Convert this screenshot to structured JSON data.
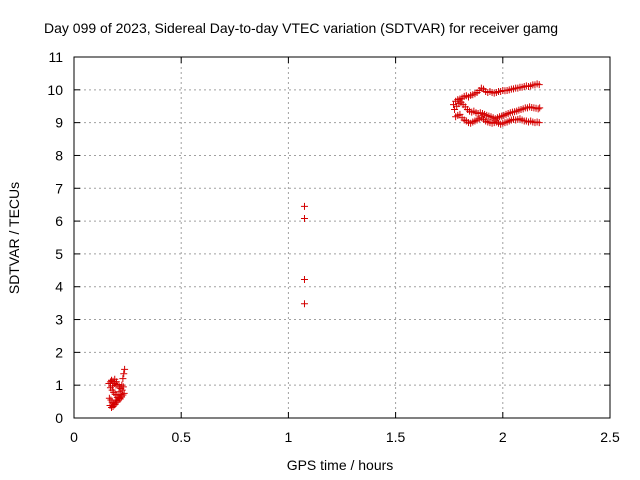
{
  "chart_data": {
    "type": "scatter",
    "title": "Day 099 of 2023, Sidereal Day-to-day VTEC variation (SDTVAR) for receiver gamg",
    "xlabel": "GPS time / hours",
    "ylabel": "SDTVAR / TECUs",
    "xlim": [
      0,
      2.5
    ],
    "ylim": [
      0,
      11
    ],
    "x_ticks": [
      0,
      0.5,
      1,
      1.5,
      2,
      2.5
    ],
    "x_tick_labels": [
      "0",
      "0.5",
      "1",
      "1.5",
      "2",
      "2.5"
    ],
    "y_ticks": [
      0,
      1,
      2,
      3,
      4,
      5,
      6,
      7,
      8,
      9,
      10,
      11
    ],
    "y_tick_labels": [
      "0",
      "1",
      "2",
      "3",
      "4",
      "5",
      "6",
      "7",
      "8",
      "9",
      "10",
      "11"
    ],
    "grid": true,
    "marker": "+",
    "color": "#d40000",
    "series": [
      {
        "points": [
          [
            0.163,
            1.05
          ],
          [
            0.17,
            1.1
          ],
          [
            0.175,
            1.15
          ],
          [
            0.182,
            1.12
          ],
          [
            0.19,
            1.18
          ],
          [
            0.198,
            1.1
          ],
          [
            0.205,
            1.02
          ],
          [
            0.212,
            0.95
          ],
          [
            0.218,
            0.9
          ],
          [
            0.223,
            1.0
          ],
          [
            0.228,
            1.2
          ],
          [
            0.232,
            1.35
          ],
          [
            0.236,
            1.48
          ],
          [
            0.17,
            0.92
          ],
          [
            0.178,
            0.85
          ],
          [
            0.185,
            0.78
          ],
          [
            0.192,
            0.72
          ],
          [
            0.2,
            0.7
          ],
          [
            0.208,
            0.62
          ],
          [
            0.215,
            0.58
          ],
          [
            0.222,
            0.64
          ],
          [
            0.228,
            0.7
          ],
          [
            0.234,
            0.75
          ],
          [
            0.165,
            0.6
          ],
          [
            0.172,
            0.55
          ],
          [
            0.178,
            0.48
          ],
          [
            0.185,
            0.45
          ],
          [
            0.192,
            0.42
          ],
          [
            0.198,
            0.48
          ],
          [
            0.205,
            0.52
          ],
          [
            0.212,
            0.6
          ],
          [
            0.218,
            0.72
          ],
          [
            0.225,
            0.85
          ],
          [
            0.23,
            0.95
          ],
          [
            0.168,
            0.38
          ],
          [
            0.175,
            0.32
          ],
          [
            0.182,
            0.35
          ],
          [
            0.188,
            0.4
          ],
          [
            0.195,
            0.55
          ],
          [
            0.202,
            0.62
          ],
          [
            0.21,
            0.8
          ],
          [
            0.18,
            0.98
          ],
          [
            0.188,
            1.05
          ],
          [
            0.196,
            1.0
          ]
        ]
      },
      {
        "points": [
          [
            1.075,
            6.45
          ],
          [
            1.075,
            6.08
          ],
          [
            1.075,
            4.22
          ],
          [
            1.075,
            3.48
          ]
        ]
      },
      {
        "points": [
          [
            1.77,
            9.55
          ],
          [
            1.78,
            9.65
          ],
          [
            1.79,
            9.7
          ],
          [
            1.8,
            9.72
          ],
          [
            1.81,
            9.75
          ],
          [
            1.82,
            9.8
          ],
          [
            1.83,
            9.82
          ],
          [
            1.84,
            9.78
          ],
          [
            1.85,
            9.83
          ],
          [
            1.86,
            9.85
          ],
          [
            1.87,
            9.88
          ],
          [
            1.88,
            9.92
          ],
          [
            1.89,
            9.98
          ],
          [
            1.9,
            10.05
          ],
          [
            1.91,
            10.02
          ],
          [
            1.92,
            9.95
          ],
          [
            1.93,
            9.92
          ],
          [
            1.94,
            9.95
          ],
          [
            1.95,
            9.92
          ],
          [
            1.96,
            9.9
          ],
          [
            1.97,
            9.92
          ],
          [
            1.98,
            9.95
          ],
          [
            1.99,
            9.95
          ],
          [
            2.0,
            9.98
          ],
          [
            2.01,
            9.97
          ],
          [
            2.02,
            9.98
          ],
          [
            2.03,
            10.0
          ],
          [
            2.04,
            10.02
          ],
          [
            2.05,
            10.03
          ],
          [
            2.06,
            10.05
          ],
          [
            2.07,
            10.05
          ],
          [
            2.08,
            10.08
          ],
          [
            2.09,
            10.08
          ],
          [
            2.1,
            10.1
          ],
          [
            2.11,
            10.12
          ],
          [
            2.12,
            10.1
          ],
          [
            2.13,
            10.12
          ],
          [
            2.14,
            10.15
          ],
          [
            2.15,
            10.15
          ],
          [
            2.16,
            10.18
          ],
          [
            2.17,
            10.16
          ],
          [
            1.775,
            9.4
          ],
          [
            1.785,
            9.5
          ],
          [
            1.795,
            9.58
          ],
          [
            1.805,
            9.62
          ],
          [
            1.815,
            9.55
          ],
          [
            1.825,
            9.48
          ],
          [
            1.835,
            9.4
          ],
          [
            1.845,
            9.35
          ],
          [
            1.855,
            9.32
          ],
          [
            1.865,
            9.35
          ],
          [
            1.875,
            9.3
          ],
          [
            1.885,
            9.28
          ],
          [
            1.895,
            9.3
          ],
          [
            1.905,
            9.28
          ],
          [
            1.915,
            9.25
          ],
          [
            1.925,
            9.22
          ],
          [
            1.935,
            9.2
          ],
          [
            1.945,
            9.18
          ],
          [
            1.955,
            9.15
          ],
          [
            1.965,
            9.12
          ],
          [
            1.975,
            9.15
          ],
          [
            1.985,
            9.18
          ],
          [
            1.995,
            9.2
          ],
          [
            2.005,
            9.22
          ],
          [
            2.015,
            9.25
          ],
          [
            2.025,
            9.28
          ],
          [
            2.035,
            9.3
          ],
          [
            2.045,
            9.32
          ],
          [
            2.055,
            9.33
          ],
          [
            2.065,
            9.35
          ],
          [
            2.075,
            9.38
          ],
          [
            2.085,
            9.4
          ],
          [
            2.095,
            9.42
          ],
          [
            2.105,
            9.45
          ],
          [
            2.115,
            9.45
          ],
          [
            2.125,
            9.48
          ],
          [
            2.135,
            9.46
          ],
          [
            2.145,
            9.45
          ],
          [
            2.155,
            9.44
          ],
          [
            2.165,
            9.42
          ],
          [
            2.172,
            9.45
          ],
          [
            1.78,
            9.18
          ],
          [
            1.79,
            9.22
          ],
          [
            1.8,
            9.25
          ],
          [
            1.81,
            9.15
          ],
          [
            1.82,
            9.08
          ],
          [
            1.83,
            9.05
          ],
          [
            1.84,
            9.0
          ],
          [
            1.85,
            8.98
          ],
          [
            1.86,
            9.02
          ],
          [
            1.87,
            9.05
          ],
          [
            1.88,
            9.08
          ],
          [
            1.89,
            9.12
          ],
          [
            1.9,
            9.15
          ],
          [
            1.91,
            9.1
          ],
          [
            1.92,
            9.05
          ],
          [
            1.93,
            9.02
          ],
          [
            1.94,
            9.0
          ],
          [
            1.95,
            8.98
          ],
          [
            1.96,
            9.0
          ],
          [
            1.97,
            9.02
          ],
          [
            1.98,
            8.98
          ],
          [
            1.99,
            8.95
          ],
          [
            2.0,
            8.98
          ],
          [
            2.01,
            9.0
          ],
          [
            2.02,
            9.02
          ],
          [
            2.03,
            9.05
          ],
          [
            2.04,
            9.08
          ],
          [
            2.05,
            9.1
          ],
          [
            2.06,
            9.08
          ],
          [
            2.07,
            9.1
          ],
          [
            2.08,
            9.12
          ],
          [
            2.09,
            9.08
          ],
          [
            2.1,
            9.05
          ],
          [
            2.11,
            9.05
          ],
          [
            2.12,
            9.02
          ],
          [
            2.13,
            9.05
          ],
          [
            2.14,
            9.02
          ],
          [
            2.15,
            9.0
          ],
          [
            2.16,
            9.02
          ],
          [
            2.17,
            9.0
          ]
        ]
      }
    ]
  }
}
